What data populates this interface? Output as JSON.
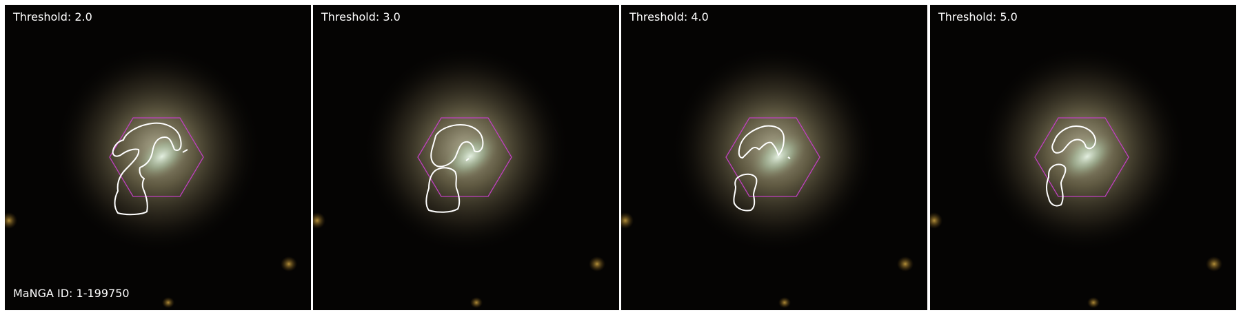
{
  "panels": [
    {
      "threshold_label": "Threshold: 2.0",
      "threshold": 2.0
    },
    {
      "threshold_label": "Threshold: 3.0",
      "threshold": 3.0
    },
    {
      "threshold_label": "Threshold: 4.0",
      "threshold": 4.0
    },
    {
      "threshold_label": "Threshold: 5.0",
      "threshold": 5.0
    }
  ],
  "manga_id_label": "MaNGA ID: 1-199750",
  "colors": {
    "background": "#050403",
    "hexagon": "#c040c0",
    "contour": "#ffffff",
    "label": "#ffffff"
  }
}
